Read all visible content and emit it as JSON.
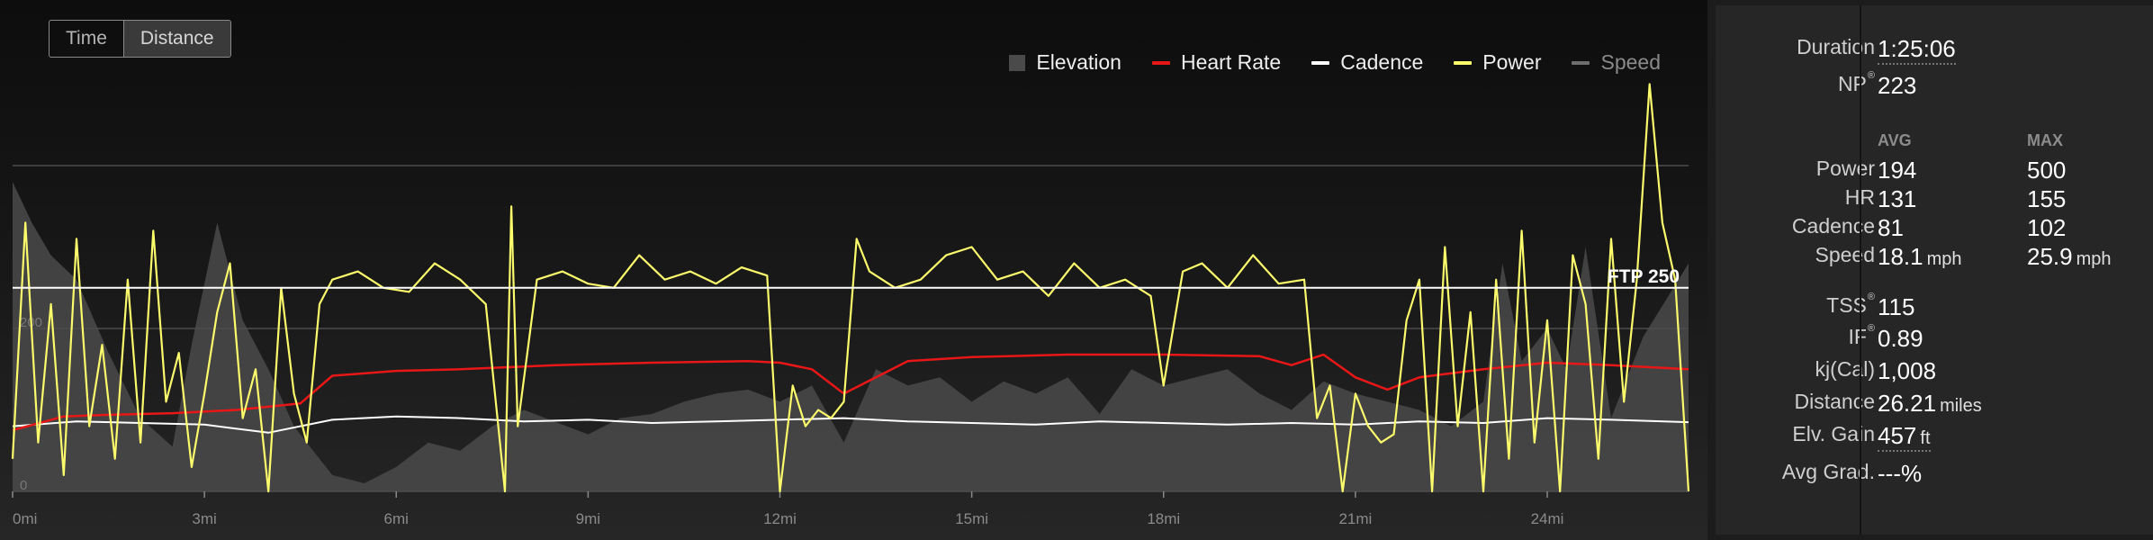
{
  "toggle": {
    "time_label": "Time",
    "distance_label": "Distance",
    "active": "Distance"
  },
  "legend": [
    {
      "label": "Elevation",
      "style": "box",
      "color": "#4a4a4a",
      "dim": false
    },
    {
      "label": "Heart Rate",
      "style": "line",
      "color": "#e81717",
      "dim": false
    },
    {
      "label": "Cadence",
      "style": "line",
      "color": "#ffffff",
      "dim": false
    },
    {
      "label": "Power",
      "style": "line",
      "color": "#fbfb6c",
      "dim": false
    },
    {
      "label": "Speed",
      "style": "line",
      "color": "#6e6e6e",
      "dim": true
    }
  ],
  "ftp_label": "FTP 250",
  "stats": {
    "duration_label": "Duration",
    "duration_value": "1:25:06",
    "np_label": "NP",
    "np_sup": "®",
    "np_value": "223",
    "avg_header": "AVG",
    "max_header": "MAX",
    "rows": [
      {
        "label": "Power",
        "avg": "194",
        "avg_unit": "",
        "max": "500",
        "max_unit": ""
      },
      {
        "label": "HR",
        "avg": "131",
        "avg_unit": "",
        "max": "155",
        "max_unit": ""
      },
      {
        "label": "Cadence",
        "avg": "81",
        "avg_unit": "",
        "max": "102",
        "max_unit": ""
      },
      {
        "label": "Speed",
        "avg": "18.1",
        "avg_unit": "mph",
        "max": "25.9",
        "max_unit": "mph"
      }
    ],
    "tss_label": "TSS",
    "tss_sup": "®",
    "tss_value": "115",
    "if_label": "IF",
    "if_sup": "®",
    "if_value": "0.89",
    "kj_label": "kj(Cal)",
    "kj_value": "1,008",
    "distance_label": "Distance",
    "distance_value": "26.21",
    "distance_unit": "miles",
    "elv_label": "Elv. Gain",
    "elv_value": "457",
    "elv_unit": "ft",
    "grad_label": "Avg Grad.",
    "grad_value": "---%"
  },
  "chart_data": {
    "type": "line",
    "x_unit": "mi",
    "xlim": [
      0,
      26.21
    ],
    "ylim": [
      0,
      400
    ],
    "x_ticks": [
      0,
      3,
      6,
      9,
      12,
      15,
      18,
      21,
      24
    ],
    "x_tick_labels": [
      "0mi",
      "3mi",
      "6mi",
      "9mi",
      "12mi",
      "15mi",
      "18mi",
      "21mi",
      "24mi"
    ],
    "y_ticks": [
      0,
      200
    ],
    "y_tick_labels": [
      "0",
      "200"
    ],
    "gridlines": [
      0,
      200,
      400
    ],
    "grid": true,
    "legend_position": "top-right",
    "ftp": 250,
    "series": [
      {
        "name": "Elevation",
        "kind": "area",
        "color": "#4a4a4a",
        "x": [
          0,
          0.3,
          0.6,
          1.0,
          1.5,
          2.0,
          2.5,
          2.8,
          3.2,
          3.6,
          4.0,
          4.4,
          5.0,
          5.5,
          6.0,
          6.5,
          7.0,
          7.5,
          8.0,
          8.5,
          9.0,
          9.5,
          10.0,
          10.5,
          11.0,
          11.5,
          12.0,
          12.5,
          13.0,
          13.5,
          14.0,
          14.5,
          15.0,
          15.5,
          16.0,
          16.5,
          17.0,
          17.5,
          18.0,
          18.5,
          19.0,
          19.5,
          20.0,
          20.5,
          21.0,
          21.5,
          22.0,
          22.5,
          23.0,
          23.3,
          23.6,
          24.0,
          24.3,
          24.6,
          25.0,
          25.5,
          26.21
        ],
        "y": [
          380,
          330,
          290,
          260,
          170,
          90,
          55,
          180,
          330,
          210,
          150,
          80,
          20,
          10,
          30,
          60,
          50,
          80,
          100,
          85,
          70,
          90,
          95,
          110,
          120,
          125,
          110,
          130,
          60,
          150,
          130,
          140,
          110,
          135,
          120,
          140,
          95,
          150,
          130,
          140,
          150,
          120,
          100,
          135,
          120,
          110,
          100,
          80,
          110,
          280,
          160,
          200,
          150,
          300,
          90,
          190,
          280
        ]
      },
      {
        "name": "Heart Rate",
        "kind": "line",
        "color": "#e81717",
        "x": [
          0,
          0.8,
          1.5,
          2.5,
          3.5,
          4.5,
          5.0,
          6.0,
          7.0,
          8.5,
          10.0,
          11.5,
          12.0,
          12.5,
          13.0,
          14.0,
          15.0,
          16.5,
          18.0,
          19.5,
          20.0,
          20.5,
          21.0,
          21.5,
          22.0,
          23.0,
          24.0,
          25.0,
          26.21
        ],
        "y": [
          75,
          92,
          94,
          96,
          100,
          108,
          142,
          148,
          150,
          155,
          158,
          160,
          158,
          150,
          120,
          160,
          165,
          168,
          168,
          166,
          155,
          168,
          140,
          125,
          140,
          150,
          158,
          155,
          150
        ]
      },
      {
        "name": "Cadence",
        "kind": "line",
        "color": "#ffffff",
        "x": [
          0,
          1.0,
          2.0,
          3.0,
          4.0,
          5.0,
          6.0,
          7.0,
          8.0,
          9.0,
          10.0,
          11.0,
          12.0,
          13.0,
          14.0,
          15.0,
          16.0,
          17.0,
          18.0,
          19.0,
          20.0,
          21.0,
          22.0,
          23.0,
          24.0,
          25.0,
          26.21
        ],
        "y": [
          80,
          86,
          84,
          82,
          72,
          88,
          92,
          90,
          86,
          88,
          84,
          86,
          88,
          90,
          86,
          84,
          82,
          86,
          84,
          82,
          84,
          82,
          86,
          84,
          90,
          88,
          85
        ]
      },
      {
        "name": "Power",
        "kind": "line",
        "color": "#fbfb6c",
        "x": [
          0,
          0.2,
          0.4,
          0.6,
          0.8,
          1.0,
          1.2,
          1.4,
          1.6,
          1.8,
          2.0,
          2.2,
          2.4,
          2.6,
          2.8,
          3.0,
          3.2,
          3.4,
          3.6,
          3.8,
          4.0,
          4.2,
          4.4,
          4.6,
          4.8,
          5.0,
          5.4,
          5.8,
          6.2,
          6.6,
          7.0,
          7.4,
          7.7,
          7.8,
          7.9,
          8.2,
          8.6,
          9.0,
          9.4,
          9.8,
          10.2,
          10.6,
          11.0,
          11.4,
          11.8,
          12.0,
          12.2,
          12.4,
          12.6,
          12.8,
          13.0,
          13.2,
          13.4,
          13.8,
          14.2,
          14.6,
          15.0,
          15.4,
          15.8,
          16.2,
          16.6,
          17.0,
          17.4,
          17.8,
          18.0,
          18.3,
          18.6,
          19.0,
          19.4,
          19.8,
          20.2,
          20.4,
          20.6,
          20.8,
          21.0,
          21.2,
          21.4,
          21.6,
          21.8,
          22.0,
          22.2,
          22.4,
          22.6,
          22.8,
          23.0,
          23.2,
          23.4,
          23.6,
          23.8,
          24.0,
          24.2,
          24.4,
          24.6,
          24.8,
          25.0,
          25.2,
          25.4,
          25.6,
          25.8,
          26.0,
          26.21
        ],
        "y": [
          40,
          330,
          60,
          230,
          20,
          310,
          80,
          180,
          40,
          260,
          60,
          320,
          110,
          170,
          30,
          120,
          220,
          280,
          90,
          150,
          0,
          250,
          120,
          60,
          230,
          260,
          270,
          250,
          245,
          280,
          260,
          230,
          0,
          350,
          80,
          260,
          270,
          255,
          250,
          290,
          260,
          270,
          255,
          275,
          265,
          0,
          130,
          80,
          100,
          90,
          110,
          310,
          270,
          250,
          260,
          290,
          300,
          260,
          270,
          240,
          280,
          250,
          260,
          240,
          130,
          270,
          280,
          250,
          290,
          255,
          260,
          90,
          130,
          0,
          120,
          80,
          60,
          70,
          210,
          260,
          0,
          300,
          80,
          220,
          0,
          260,
          40,
          320,
          60,
          210,
          0,
          290,
          230,
          40,
          310,
          110,
          260,
          500,
          330,
          260,
          0
        ]
      }
    ]
  }
}
